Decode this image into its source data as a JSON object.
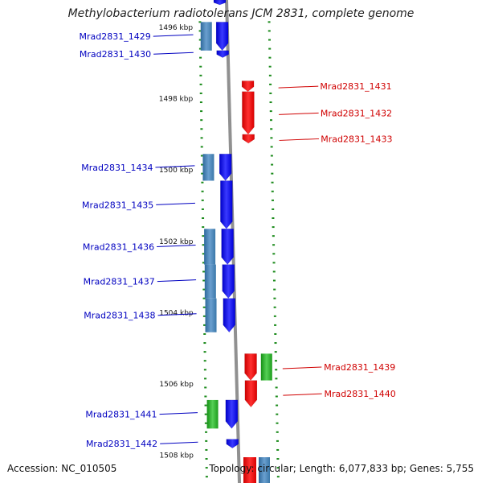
{
  "map": {
    "title": "Methylobacterium radiotolerans JCM 2831, complete genome",
    "accession_text": "Accession: NC_010505",
    "topology_text": "Topology: circular; Length: 6,077,833 bp; Genes: 5,755",
    "colors": {
      "backbone": "#909090",
      "cds": "#0000ff",
      "gene": "#4682b4",
      "reverse_cds": "#ff0000",
      "trna": "#1faa1f",
      "ticks": "#1a8a1a",
      "forward_label": "#0000c0",
      "reverse_label": "#d00000"
    }
  },
  "chart_data": {
    "type": "linear-genome-map",
    "scale_unit": "kbp",
    "scale_labels": [
      {
        "label": "1496 kbp",
        "kbp": 1496
      },
      {
        "label": "1498 kbp",
        "kbp": 1498
      },
      {
        "label": "1500 kbp",
        "kbp": 1500
      },
      {
        "label": "1502 kbp",
        "kbp": 1502
      },
      {
        "label": "1504 kbp",
        "kbp": 1504
      },
      {
        "label": "1506 kbp",
        "kbp": 1506
      },
      {
        "label": "1508 kbp",
        "kbp": 1508
      }
    ],
    "forward_genes": [
      {
        "label": "Mrad2831_1429",
        "start_kbp": 1495.85,
        "end_kbp": 1496.65,
        "kind": "cds"
      },
      {
        "label": "Mrad2831_1430",
        "start_kbp": 1496.65,
        "end_kbp": 1496.85,
        "kind": "cds"
      },
      {
        "label": "Mrad2831_1434",
        "start_kbp": 1499.55,
        "end_kbp": 1500.3,
        "kind": "cds"
      },
      {
        "label": "Mrad2831_1435",
        "start_kbp": 1500.3,
        "end_kbp": 1501.65,
        "kind": "cds"
      },
      {
        "label": "Mrad2831_1436",
        "start_kbp": 1501.65,
        "end_kbp": 1502.65,
        "kind": "cds"
      },
      {
        "label": "Mrad2831_1437",
        "start_kbp": 1502.65,
        "end_kbp": 1503.6,
        "kind": "cds"
      },
      {
        "label": "Mrad2831_1438",
        "start_kbp": 1503.6,
        "end_kbp": 1504.55,
        "kind": "cds"
      },
      {
        "label": "Mrad2831_1441",
        "start_kbp": 1506.45,
        "end_kbp": 1507.25,
        "kind": "trna"
      },
      {
        "label": "Mrad2831_1442",
        "start_kbp": 1507.55,
        "end_kbp": 1507.8,
        "kind": "cds"
      }
    ],
    "reverse_genes": [
      {
        "label": "Mrad2831_1431",
        "start_kbp": 1497.5,
        "end_kbp": 1497.8,
        "kind": "cds"
      },
      {
        "label": "Mrad2831_1432",
        "start_kbp": 1497.8,
        "end_kbp": 1499.0,
        "kind": "cds"
      },
      {
        "label": "Mrad2831_1433",
        "start_kbp": 1499.0,
        "end_kbp": 1499.25,
        "kind": "cds"
      },
      {
        "label": "Mrad2831_1439",
        "start_kbp": 1505.15,
        "end_kbp": 1505.9,
        "kind": "trna"
      },
      {
        "label": "Mrad2831_1440",
        "start_kbp": 1505.9,
        "end_kbp": 1506.65,
        "kind": "cds"
      }
    ]
  }
}
